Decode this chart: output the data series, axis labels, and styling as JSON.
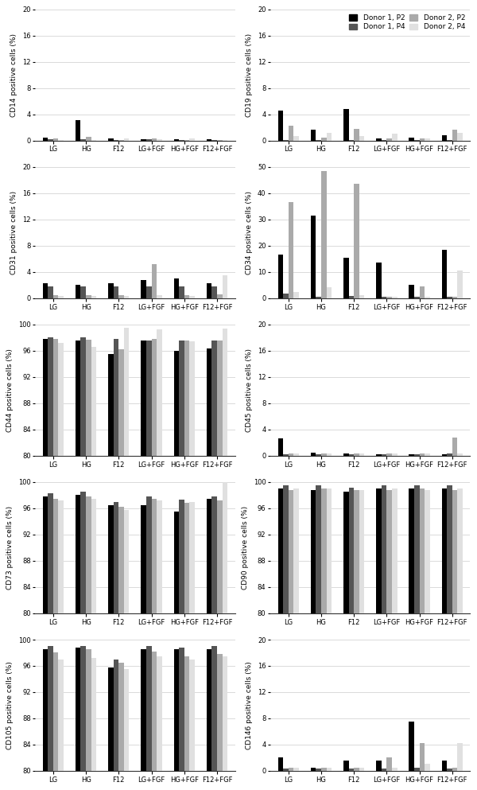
{
  "categories": [
    "LG",
    "HG",
    "F12",
    "LG+FGF",
    "HG+FGF",
    "F12+FGF"
  ],
  "legend_labels": [
    "Donor 1, P2",
    "Donor 1, P4",
    "Donor 2, P2",
    "Donor 2, P4"
  ],
  "bar_colors": [
    "#000000",
    "#555555",
    "#aaaaaa",
    "#e0e0e0"
  ],
  "panels": [
    {
      "ylabel": "CD14 positive cells (%)",
      "ylim": [
        0,
        20
      ],
      "yticks": [
        0,
        4,
        8,
        12,
        16,
        20
      ],
      "data": [
        [
          0.45,
          3.1,
          0.3,
          0.15,
          0.15,
          0.2
        ],
        [
          0.15,
          0.15,
          0.1,
          0.2,
          0.1,
          0.1
        ],
        [
          0.25,
          0.5,
          0.1,
          0.25,
          0.1,
          0.1
        ],
        [
          0.1,
          0.1,
          0.25,
          0.2,
          0.25,
          0.1
        ]
      ]
    },
    {
      "ylabel": "CD19 positive cells (%)",
      "ylim": [
        0,
        20
      ],
      "yticks": [
        0,
        4,
        8,
        12,
        16,
        20
      ],
      "data": [
        [
          4.6,
          1.6,
          4.8,
          0.3,
          0.4,
          0.8
        ],
        [
          0.1,
          0.1,
          0.1,
          0.1,
          0.1,
          0.1
        ],
        [
          2.2,
          0.4,
          1.8,
          0.3,
          0.3,
          1.6
        ],
        [
          0.7,
          1.2,
          0.7,
          1.0,
          0.3,
          1.1
        ]
      ]
    },
    {
      "ylabel": "CD31 positive cells (%)",
      "ylim": [
        0,
        20
      ],
      "yticks": [
        0,
        4,
        8,
        12,
        16,
        20
      ],
      "data": [
        [
          2.2,
          2.0,
          2.3,
          2.8,
          3.0,
          2.2
        ],
        [
          1.8,
          1.8,
          1.8,
          1.8,
          1.8,
          1.8
        ],
        [
          0.4,
          0.4,
          0.4,
          5.2,
          0.4,
          0.5
        ],
        [
          0.3,
          0.3,
          0.3,
          0.4,
          0.3,
          3.5
        ]
      ]
    },
    {
      "ylabel": "CD34 positive cells (%)",
      "ylim": [
        0,
        50
      ],
      "yticks": [
        0,
        10,
        20,
        30,
        40,
        50
      ],
      "data": [
        [
          16.5,
          31.5,
          15.5,
          13.5,
          5.0,
          18.5
        ],
        [
          1.7,
          0.5,
          0.8,
          0.5,
          0.5,
          0.5
        ],
        [
          36.5,
          48.5,
          43.5,
          0.5,
          4.5,
          0.5
        ],
        [
          2.2,
          4.0,
          1.0,
          0.5,
          0.5,
          10.5
        ]
      ]
    },
    {
      "ylabel": "CD44 positive cells (%)",
      "ylim": [
        80,
        100
      ],
      "yticks": [
        80,
        84,
        88,
        92,
        96,
        100
      ],
      "data": [
        [
          97.8,
          97.6,
          95.5,
          97.6,
          96.0,
          96.3
        ],
        [
          98.1,
          98.0,
          97.8,
          97.6,
          97.6,
          97.6
        ],
        [
          97.8,
          97.7,
          96.2,
          97.8,
          97.6,
          97.6
        ],
        [
          97.2,
          96.6,
          99.5,
          99.3,
          97.5,
          99.4
        ]
      ]
    },
    {
      "ylabel": "CD45 positive cells (%)",
      "ylim": [
        0,
        20
      ],
      "yticks": [
        0,
        4,
        8,
        12,
        16,
        20
      ],
      "data": [
        [
          2.6,
          0.5,
          0.3,
          0.2,
          0.2,
          0.2
        ],
        [
          0.2,
          0.2,
          0.2,
          0.2,
          0.15,
          0.3
        ],
        [
          0.3,
          0.3,
          0.3,
          0.3,
          0.3,
          2.8
        ],
        [
          0.3,
          0.3,
          0.3,
          0.3,
          0.3,
          0.3
        ]
      ]
    },
    {
      "ylabel": "CD73 positive cells (%)",
      "ylim": [
        80,
        100
      ],
      "yticks": [
        80,
        84,
        88,
        92,
        96,
        100
      ],
      "data": [
        [
          97.8,
          98.0,
          96.5,
          96.5,
          95.5,
          97.5
        ],
        [
          98.3,
          98.5,
          97.0,
          97.8,
          97.3,
          97.8
        ],
        [
          97.5,
          97.8,
          96.2,
          97.5,
          96.8,
          97.2
        ],
        [
          97.2,
          97.5,
          95.8,
          97.2,
          97.0,
          101.0
        ]
      ]
    },
    {
      "ylabel": "CD90 positive cells (%)",
      "ylim": [
        80,
        100
      ],
      "yticks": [
        80,
        84,
        88,
        92,
        96,
        100
      ],
      "data": [
        [
          99.0,
          98.8,
          98.5,
          99.0,
          99.0,
          99.0
        ],
        [
          99.5,
          99.5,
          99.2,
          99.5,
          99.5,
          99.5
        ],
        [
          98.8,
          99.0,
          98.8,
          98.8,
          99.0,
          98.8
        ],
        [
          99.0,
          99.0,
          98.8,
          99.0,
          98.8,
          99.0
        ]
      ]
    },
    {
      "ylabel": "CD105 positive cells (%)",
      "ylim": [
        80,
        100
      ],
      "yticks": [
        80,
        84,
        88,
        92,
        96,
        100
      ],
      "data": [
        [
          98.5,
          98.8,
          95.8,
          98.5,
          98.5,
          98.5
        ],
        [
          99.0,
          99.0,
          97.0,
          99.0,
          98.8,
          99.0
        ],
        [
          98.0,
          98.5,
          96.5,
          98.2,
          97.5,
          97.8
        ],
        [
          97.0,
          97.2,
          95.5,
          97.5,
          97.0,
          97.5
        ]
      ]
    },
    {
      "ylabel": "CD146 positive cells (%)",
      "ylim": [
        0,
        20
      ],
      "yticks": [
        0,
        4,
        8,
        12,
        16,
        20
      ],
      "data": [
        [
          2.0,
          0.5,
          1.5,
          1.5,
          7.5,
          1.5
        ],
        [
          0.3,
          0.3,
          0.3,
          0.3,
          0.5,
          0.3
        ],
        [
          0.5,
          0.5,
          0.5,
          2.0,
          4.2,
          0.5
        ],
        [
          0.5,
          0.5,
          0.5,
          0.5,
          1.0,
          4.2
        ]
      ]
    }
  ]
}
